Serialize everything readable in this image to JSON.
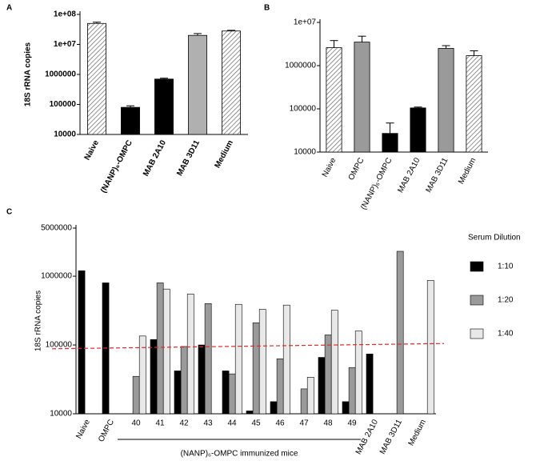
{
  "chart_data": [
    {
      "type": "bar",
      "panel": "A",
      "ylabel": "18S rRNA copies",
      "log_y": true,
      "categories": [
        "Naive",
        "(NANP)₆-OMPC",
        "MAB  2A10",
        "MAB 3D11",
        "Medium"
      ],
      "values": [
        50000000,
        80000,
        700000,
        20000000,
        28000000
      ],
      "errors": [
        5000000,
        10000,
        50000,
        3000000,
        1500000
      ],
      "colors": [
        "hatch",
        "#000000",
        "#000000",
        "#b0b0b0",
        "hatch"
      ],
      "ylim": [
        10000,
        100000000
      ],
      "yticks": [
        {
          "value": 100000000,
          "label": "1e+08"
        },
        {
          "value": 10000000,
          "label": "1e+07"
        },
        1000000,
        100000,
        10000
      ]
    },
    {
      "type": "bar",
      "panel": "B",
      "log_y": true,
      "categories": [
        "Naive",
        "OMPC",
        "(NANP)₆-OMPC",
        "MAB  2A10",
        "MAB 3D11",
        "Medium"
      ],
      "values": [
        2600000,
        3500000,
        27000,
        105000,
        2500000,
        1700000
      ],
      "errors": [
        1200000,
        1300000,
        20000,
        5000,
        400000,
        500000
      ],
      "colors": [
        "hatch",
        "#9a9a9a",
        "#000000",
        "#000000",
        "#9a9a9a",
        "hatch"
      ],
      "ylim": [
        10000,
        10000000
      ],
      "yticks": [
        {
          "value": 10000000,
          "label": "1e+07"
        },
        1000000,
        100000,
        10000
      ]
    },
    {
      "type": "grouped_bar",
      "panel": "C",
      "ylabel": "18S rRNA copies",
      "log_y": true,
      "group_label": "(NANP)₆-OMPC  immunized mice",
      "legend_title": "Serum Dilution",
      "categories": [
        "Naive",
        "OMPC",
        "40",
        "41",
        "42",
        "43",
        "44",
        "45",
        "46",
        "47",
        "48",
        "49",
        "MAB  2A10",
        "MAB 3D11",
        "Medium"
      ],
      "series": [
        {
          "name": "1:10",
          "color": "#000000",
          "values": [
            1200000,
            800000,
            null,
            120000,
            42000,
            100000,
            42000,
            11000,
            15000,
            null,
            66000,
            15000,
            74000,
            null,
            null
          ]
        },
        {
          "name": "1:20",
          "color": "#9a9a9a",
          "values": [
            null,
            null,
            35000,
            800000,
            95000,
            400000,
            38000,
            210000,
            63000,
            23000,
            140000,
            47000,
            null,
            2300000,
            null
          ]
        },
        {
          "name": "1:40",
          "color": "#e8e8e8",
          "values": [
            null,
            null,
            135000,
            650000,
            550000,
            null,
            390000,
            330000,
            380000,
            34000,
            320000,
            160000,
            null,
            null,
            870000
          ]
        }
      ],
      "reference_line": {
        "values": [
          88000,
          105000
        ],
        "color": "#e8262a"
      },
      "ylim": [
        10000,
        5000000
      ],
      "yticks": [
        5000000,
        1000000,
        100000,
        10000
      ]
    }
  ]
}
